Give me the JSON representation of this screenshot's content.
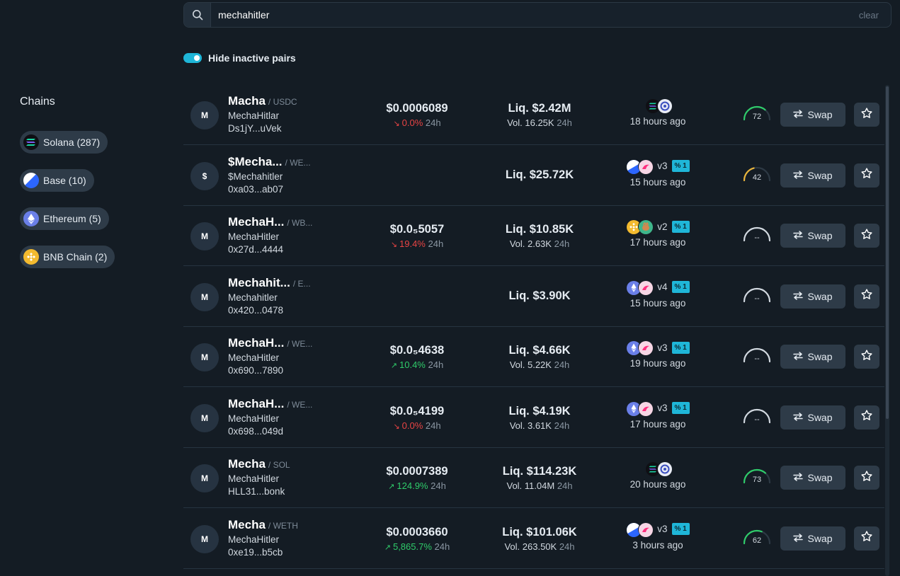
{
  "search": {
    "value": "mechahitler",
    "clear_label": "clear",
    "icon": "search-icon"
  },
  "filter": {
    "label": "Hide inactive pairs",
    "enabled": true
  },
  "chains": {
    "title": "Chains",
    "items": [
      {
        "label": "Solana (287)",
        "icon": "solana-icon"
      },
      {
        "label": "Base (10)",
        "icon": "base-icon"
      },
      {
        "label": "Ethereum (5)",
        "icon": "ethereum-icon"
      },
      {
        "label": "BNB Chain (2)",
        "icon": "bnb-icon"
      }
    ]
  },
  "pairs": [
    {
      "avatar": "M",
      "symbol": "Macha",
      "quote": "/ USDC",
      "name": "MechaHitlar",
      "address": "Ds1jY...uVek",
      "price": "$0.0006089",
      "change": "0.0%",
      "change_dir": "down",
      "period": "24h",
      "liq": "Liq. $2.42M",
      "vol": "Vol. 16.25K",
      "icons": [
        "solana-icon",
        "raydium-icon"
      ],
      "version": "",
      "score": "72",
      "score_level": 0.72,
      "swap_label": "Swap"
    },
    {
      "avatar": "$",
      "symbol": "$Mecha...",
      "quote": "/ WE...",
      "name": "$Mechahitler",
      "address": "0xa03...ab07",
      "price": "",
      "change": "",
      "change_dir": "",
      "period": "",
      "liq": "Liq. $25.72K",
      "vol": "",
      "icons": [
        "base-icon",
        "uniswap-icon"
      ],
      "version": "v3",
      "score": "42",
      "score_level": 0.42,
      "swap_label": "Swap"
    },
    {
      "avatar": "M",
      "symbol": "MechaH...",
      "quote": "/ WB...",
      "name": "MechaHitler",
      "address": "0x27d...4444",
      "price": "$0.0₅5057",
      "change": "19.4%",
      "change_dir": "down",
      "period": "24h",
      "liq": "Liq. $10.85K",
      "vol": "Vol. 2.63K",
      "icons": [
        "bnb-icon",
        "pancakeswap-icon"
      ],
      "version": "v2",
      "score": "--",
      "score_level": null,
      "swap_label": "Swap"
    },
    {
      "avatar": "M",
      "symbol": "Mechahit...",
      "quote": "/ E...",
      "name": "Mechahitler",
      "address": "0x420...0478",
      "price": "",
      "change": "",
      "change_dir": "",
      "period": "",
      "liq": "Liq. $3.90K",
      "vol": "",
      "icons": [
        "ethereum-icon",
        "uniswap-icon"
      ],
      "version": "v4",
      "score": "--",
      "score_level": null,
      "swap_label": "Swap"
    },
    {
      "avatar": "M",
      "symbol": "MechaH...",
      "quote": "/ WE...",
      "name": "MechaHitler",
      "address": "0x690...7890",
      "price": "$0.0₅4638",
      "change": "10.4%",
      "change_dir": "up",
      "period": "24h",
      "liq": "Liq. $4.66K",
      "vol": "Vol. 5.22K",
      "icons": [
        "ethereum-icon",
        "uniswap-icon"
      ],
      "version": "v3",
      "score": "--",
      "score_level": null,
      "swap_label": "Swap"
    },
    {
      "avatar": "M",
      "symbol": "MechaH...",
      "quote": "/ WE...",
      "name": "MechaHitler",
      "address": "0x698...049d",
      "price": "$0.0₅4199",
      "change": "0.0%",
      "change_dir": "down",
      "period": "24h",
      "liq": "Liq. $4.19K",
      "vol": "Vol. 3.61K",
      "icons": [
        "ethereum-icon",
        "uniswap-icon"
      ],
      "version": "v3",
      "score": "--",
      "score_level": null,
      "swap_label": "Swap"
    },
    {
      "avatar": "M",
      "symbol": "Mecha",
      "quote": "/ SOL",
      "name": "MechaHitler",
      "address": "HLL31...bonk",
      "price": "$0.0007389",
      "change": "124.9%",
      "change_dir": "up",
      "period": "24h",
      "liq": "Liq. $114.23K",
      "vol": "Vol. 11.04M",
      "icons": [
        "solana-icon",
        "raydium-icon"
      ],
      "version": "",
      "score": "73",
      "score_level": 0.73,
      "swap_label": "Swap"
    },
    {
      "avatar": "M",
      "symbol": "Mecha",
      "quote": "/ WETH",
      "name": "MechaHitler",
      "address": "0xe19...b5cb",
      "price": "$0.0003660",
      "change": "5,865.7%",
      "change_dir": "up",
      "period": "24h",
      "liq": "Liq. $101.06K",
      "vol": "Vol. 263.50K",
      "icons": [
        "base-icon",
        "uniswap-icon"
      ],
      "version": "v3",
      "score": "62",
      "score_level": 0.62,
      "swap_label": "Swap"
    }
  ],
  "ages": [
    "18 hours ago",
    "15 hours ago",
    "17 hours ago",
    "15 hours ago",
    "19 hours ago",
    "17 hours ago",
    "20 hours ago",
    "3 hours ago"
  ],
  "colors": {
    "accent": "#1fb6d8",
    "positive": "#2fcb6a",
    "negative": "#e84444",
    "score_high": "#2fcb6a",
    "score_mid": "#e8b43c"
  }
}
